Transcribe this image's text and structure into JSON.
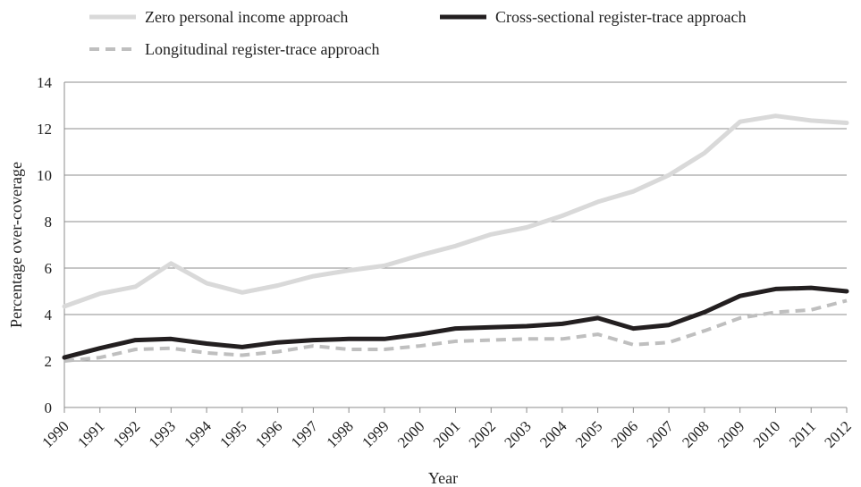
{
  "chart_data": {
    "type": "line",
    "title": "",
    "xlabel": "Year",
    "ylabel": "Percentage over-coverage",
    "ylim": [
      0,
      14
    ],
    "yticks": [
      0,
      2,
      4,
      6,
      8,
      10,
      12,
      14
    ],
    "grid": "horizontal",
    "legend_placement": "top",
    "categories": [
      "1990",
      "1991",
      "1992",
      "1993",
      "1994",
      "1995",
      "1996",
      "1997",
      "1998",
      "1999",
      "2000",
      "2001",
      "2002",
      "2003",
      "2004",
      "2005",
      "2006",
      "2007",
      "2008",
      "2009",
      "2010",
      "2011",
      "2012"
    ],
    "series": [
      {
        "name": "Zero personal income approach",
        "color": "#d9d9d9",
        "style": "solid",
        "values": [
          4.35,
          4.9,
          5.2,
          6.2,
          5.35,
          4.95,
          5.25,
          5.65,
          5.9,
          6.1,
          6.55,
          6.95,
          7.45,
          7.75,
          8.25,
          8.85,
          9.3,
          10.0,
          10.95,
          12.3,
          12.55,
          12.35,
          12.25
        ]
      },
      {
        "name": "Cross-sectional register-trace approach",
        "color": "#231f20",
        "style": "solid",
        "values": [
          2.15,
          2.55,
          2.9,
          2.95,
          2.75,
          2.6,
          2.8,
          2.9,
          2.95,
          2.95,
          3.15,
          3.4,
          3.45,
          3.5,
          3.6,
          3.85,
          3.4,
          3.55,
          4.1,
          4.8,
          5.1,
          5.15,
          5.0
        ]
      },
      {
        "name": "Longitudinal register-trace approach",
        "color": "#bfbfbf",
        "style": "dashed",
        "values": [
          2.0,
          2.15,
          2.5,
          2.55,
          2.35,
          2.25,
          2.4,
          2.65,
          2.5,
          2.5,
          2.65,
          2.85,
          2.9,
          2.95,
          2.95,
          3.15,
          2.7,
          2.8,
          3.3,
          3.85,
          4.1,
          4.2,
          4.6
        ]
      }
    ]
  }
}
